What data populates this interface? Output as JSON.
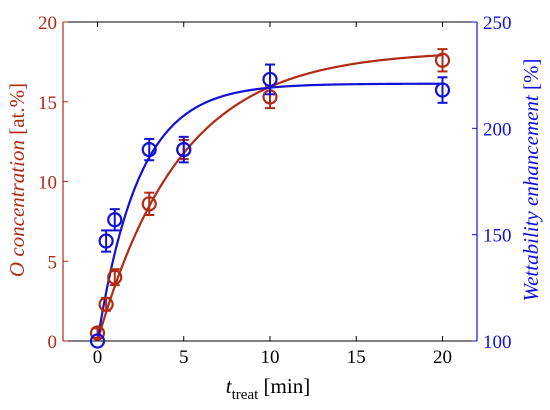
{
  "chart_data": {
    "type": "scatter",
    "x": {
      "label_main": "t",
      "label_sub": "treat",
      "label_unit": " [min]",
      "range": [
        -2,
        22
      ],
      "ticks": [
        0,
        5,
        10,
        15,
        20
      ]
    },
    "y_left": {
      "label_main": "O concentration",
      "label_unit": " [at.%]",
      "range": [
        0,
        20
      ],
      "ticks": [
        0,
        5,
        10,
        15,
        20
      ],
      "color": "#b02a14"
    },
    "y_right": {
      "label_main": "Wettability enhancement",
      "label_unit": " [%]",
      "range": [
        100,
        250
      ],
      "ticks": [
        100,
        150,
        200,
        250
      ],
      "color": "#1010d8"
    },
    "series": [
      {
        "axis": "left",
        "color": "#b02a14",
        "points": [
          {
            "x": 0,
            "y": 0.5,
            "err": 0.3
          },
          {
            "x": 0.5,
            "y": 2.3,
            "err": 0.4
          },
          {
            "x": 1,
            "y": 4.0,
            "err": 0.5
          },
          {
            "x": 3,
            "y": 8.6,
            "err": 0.7
          },
          {
            "x": 5,
            "y": 12.0,
            "err": 0.6
          },
          {
            "x": 10,
            "y": 15.3,
            "err": 0.7
          },
          {
            "x": 20,
            "y": 17.6,
            "err": 0.7
          }
        ],
        "fit": {
          "a": 18.2,
          "tau": 4.8,
          "y0": 0
        }
      },
      {
        "axis": "right",
        "color": "#1010d8",
        "points": [
          {
            "x": 0,
            "y": 100,
            "err": 0
          },
          {
            "x": 0.5,
            "y": 147,
            "err": 5
          },
          {
            "x": 1,
            "y": 157,
            "err": 5
          },
          {
            "x": 3,
            "y": 190,
            "err": 5
          },
          {
            "x": 5,
            "y": 190,
            "err": 6
          },
          {
            "x": 10,
            "y": 223,
            "err": 7
          },
          {
            "x": 20,
            "y": 218,
            "err": 6
          }
        ],
        "fit": {
          "a": 121,
          "tau": 2.4,
          "y0": 100
        }
      }
    ]
  }
}
